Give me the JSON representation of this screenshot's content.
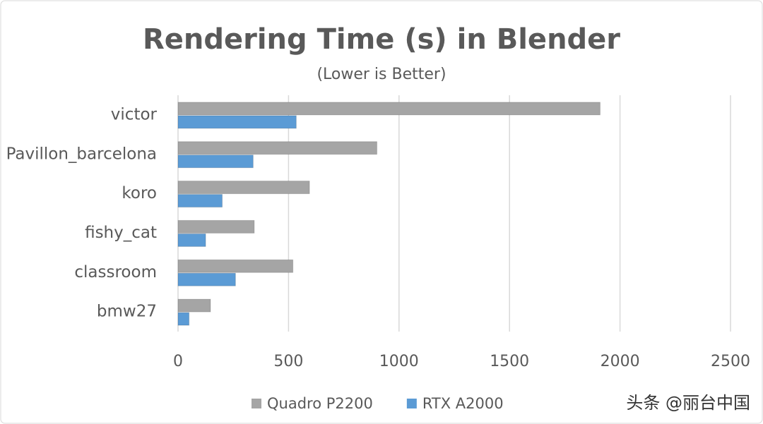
{
  "chart_data": {
    "type": "hbar",
    "title": "Rendering Time (s) in Blender",
    "subtitle": "(Lower is Better)",
    "categories": [
      "victor",
      "Pavillon_barcelona",
      "koro",
      "fishy_cat",
      "classroom",
      "bmw27"
    ],
    "series": [
      {
        "name": "Quadro P2200",
        "color": "#a5a5a5",
        "values": [
          1910,
          900,
          595,
          345,
          520,
          147
        ]
      },
      {
        "name": "RTX A2000",
        "color": "#5b9bd5",
        "values": [
          535,
          340,
          200,
          125,
          260,
          50
        ]
      }
    ],
    "xlim": [
      0,
      2500
    ],
    "xticks": [
      0,
      500,
      1000,
      1500,
      2000,
      2500
    ],
    "grid": true,
    "legend": "bottom",
    "watermark": "头条 @丽台中国"
  }
}
